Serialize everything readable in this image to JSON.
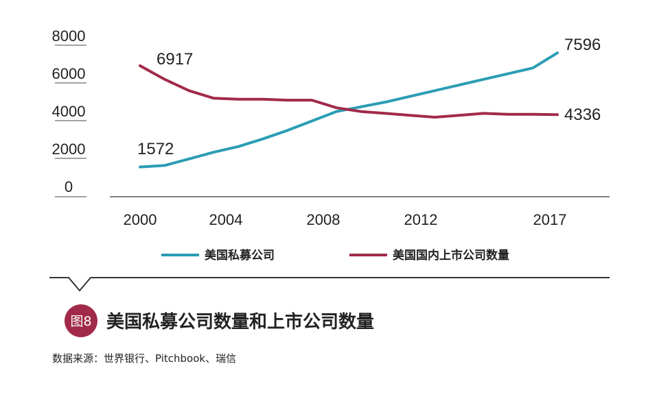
{
  "chart_data": {
    "type": "line",
    "x": [
      2000,
      2001,
      2002,
      2003,
      2004,
      2005,
      2006,
      2007,
      2008,
      2009,
      2010,
      2011,
      2012,
      2013,
      2014,
      2015,
      2016,
      2017
    ],
    "xticks": [
      "2000",
      "2004",
      "2008",
      "2012",
      "2017"
    ],
    "yticks": [
      "0",
      "2000",
      "4000",
      "6000",
      "8000"
    ],
    "ylim": [
      0,
      8000
    ],
    "series": [
      {
        "name": "美国私募公司",
        "color": "#2a9db4",
        "values": [
          1572,
          1650,
          2000,
          2350,
          2650,
          3050,
          3500,
          4000,
          4500,
          4750,
          5000,
          5300,
          5600,
          5900,
          6200,
          6500,
          6800,
          7596
        ],
        "start_label": "1572",
        "end_label": "7596"
      },
      {
        "name": "美国国内上市公司数量",
        "color": "#a12a4a",
        "values": [
          6917,
          6200,
          5600,
          5200,
          5150,
          5150,
          5100,
          5100,
          4700,
          4500,
          4400,
          4300,
          4200,
          4300,
          4400,
          4350,
          4350,
          4336
        ],
        "start_label": "6917",
        "end_label": "4336"
      }
    ],
    "legend_position": "bottom"
  },
  "figure": {
    "badge": "图8",
    "badge_color": "#a12a4a",
    "title": "美国私募公司数量和上市公司数量",
    "source": "数据来源：世界银行、Pitchbook、瑞信"
  }
}
